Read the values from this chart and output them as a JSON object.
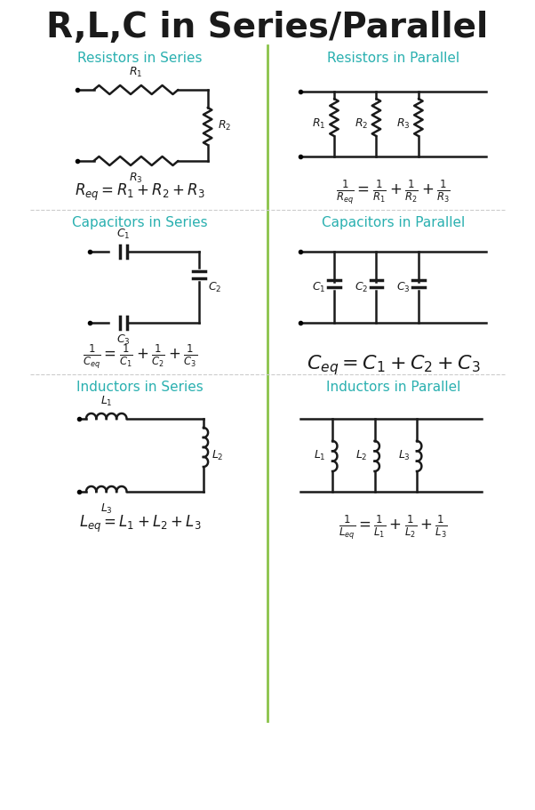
{
  "title": "R,L,C in Series/Parallel",
  "title_color": "#1a1a1a",
  "title_fontsize": 28,
  "bg_color": "#ffffff",
  "teal_color": "#2ab0b0",
  "divider_color": "#8bc34a",
  "section_titles": {
    "res_series": "Resistors in Series",
    "res_parallel": "Resistors in Parallel",
    "cap_series": "Capacitors in Series",
    "cap_parallel": "Capacitors in Parallel",
    "ind_series": "Inductors in Series",
    "ind_parallel": "Inductors in Parallel"
  },
  "formulas": {
    "res_series": "R_{eq} = R_1+R_2+R_3",
    "res_parallel": "\\frac{1}{R_{eq}} = \\frac{1}{R_1}+\\frac{1}{R_2}+\\frac{1}{R_3}",
    "cap_series": "\\frac{1}{C_{eq}} = \\frac{1}{C_1}+\\frac{1}{C_2}+\\frac{1}{C_3}",
    "cap_parallel": "C_{eq} = C_1+C_2+C_3",
    "ind_series": "L_{eq} = L_1+L_2+L_3",
    "ind_parallel": "\\frac{1}{L_{eq}} = \\frac{1}{L_1}+\\frac{1}{L_2}+\\frac{1}{L_3}"
  }
}
